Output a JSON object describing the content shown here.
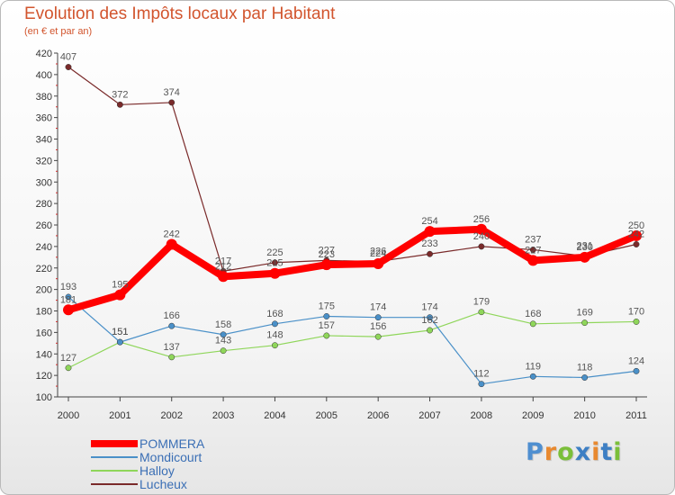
{
  "chart_data": {
    "type": "line",
    "title": "Evolution des Impôts locaux par Habitant",
    "subtitle": "(en € et par an)",
    "xlabel": "",
    "ylabel": "",
    "categories": [
      "2000",
      "2001",
      "2002",
      "2003",
      "2004",
      "2005",
      "2006",
      "2007",
      "2008",
      "2009",
      "2010",
      "2011"
    ],
    "ylim": [
      100,
      420
    ],
    "yticks": [
      100,
      120,
      140,
      160,
      180,
      200,
      220,
      240,
      260,
      280,
      300,
      320,
      340,
      360,
      380,
      400,
      420
    ],
    "grid": false,
    "legend_position": "bottom-left",
    "series": [
      {
        "name": "POMMERA",
        "color": "#ff0000",
        "values": [
          181,
          195,
          242,
          212,
          215,
          223,
          224,
          254,
          256,
          227,
          230,
          250
        ]
      },
      {
        "name": "Mondicourt",
        "color": "#4a90c8",
        "values": [
          193,
          151,
          166,
          158,
          168,
          175,
          174,
          174,
          112,
          119,
          118,
          124
        ]
      },
      {
        "name": "Halloy",
        "color": "#8fd65a",
        "values": [
          127,
          151,
          137,
          143,
          148,
          157,
          156,
          162,
          179,
          168,
          169,
          170
        ]
      },
      {
        "name": "Lucheux",
        "color": "#7a2a2a",
        "values": [
          407,
          372,
          374,
          217,
          225,
          227,
          226,
          233,
          240,
          237,
          231,
          242
        ]
      }
    ]
  },
  "brand": {
    "letters": [
      "P",
      "r",
      "o",
      "x",
      "i",
      "t",
      "i"
    ],
    "colors": [
      "#4f8fd0",
      "#e8892f",
      "#7bbf3a",
      "#3d7fc4",
      "#e8892f",
      "#3d7fc4",
      "#7bbf3a"
    ]
  }
}
